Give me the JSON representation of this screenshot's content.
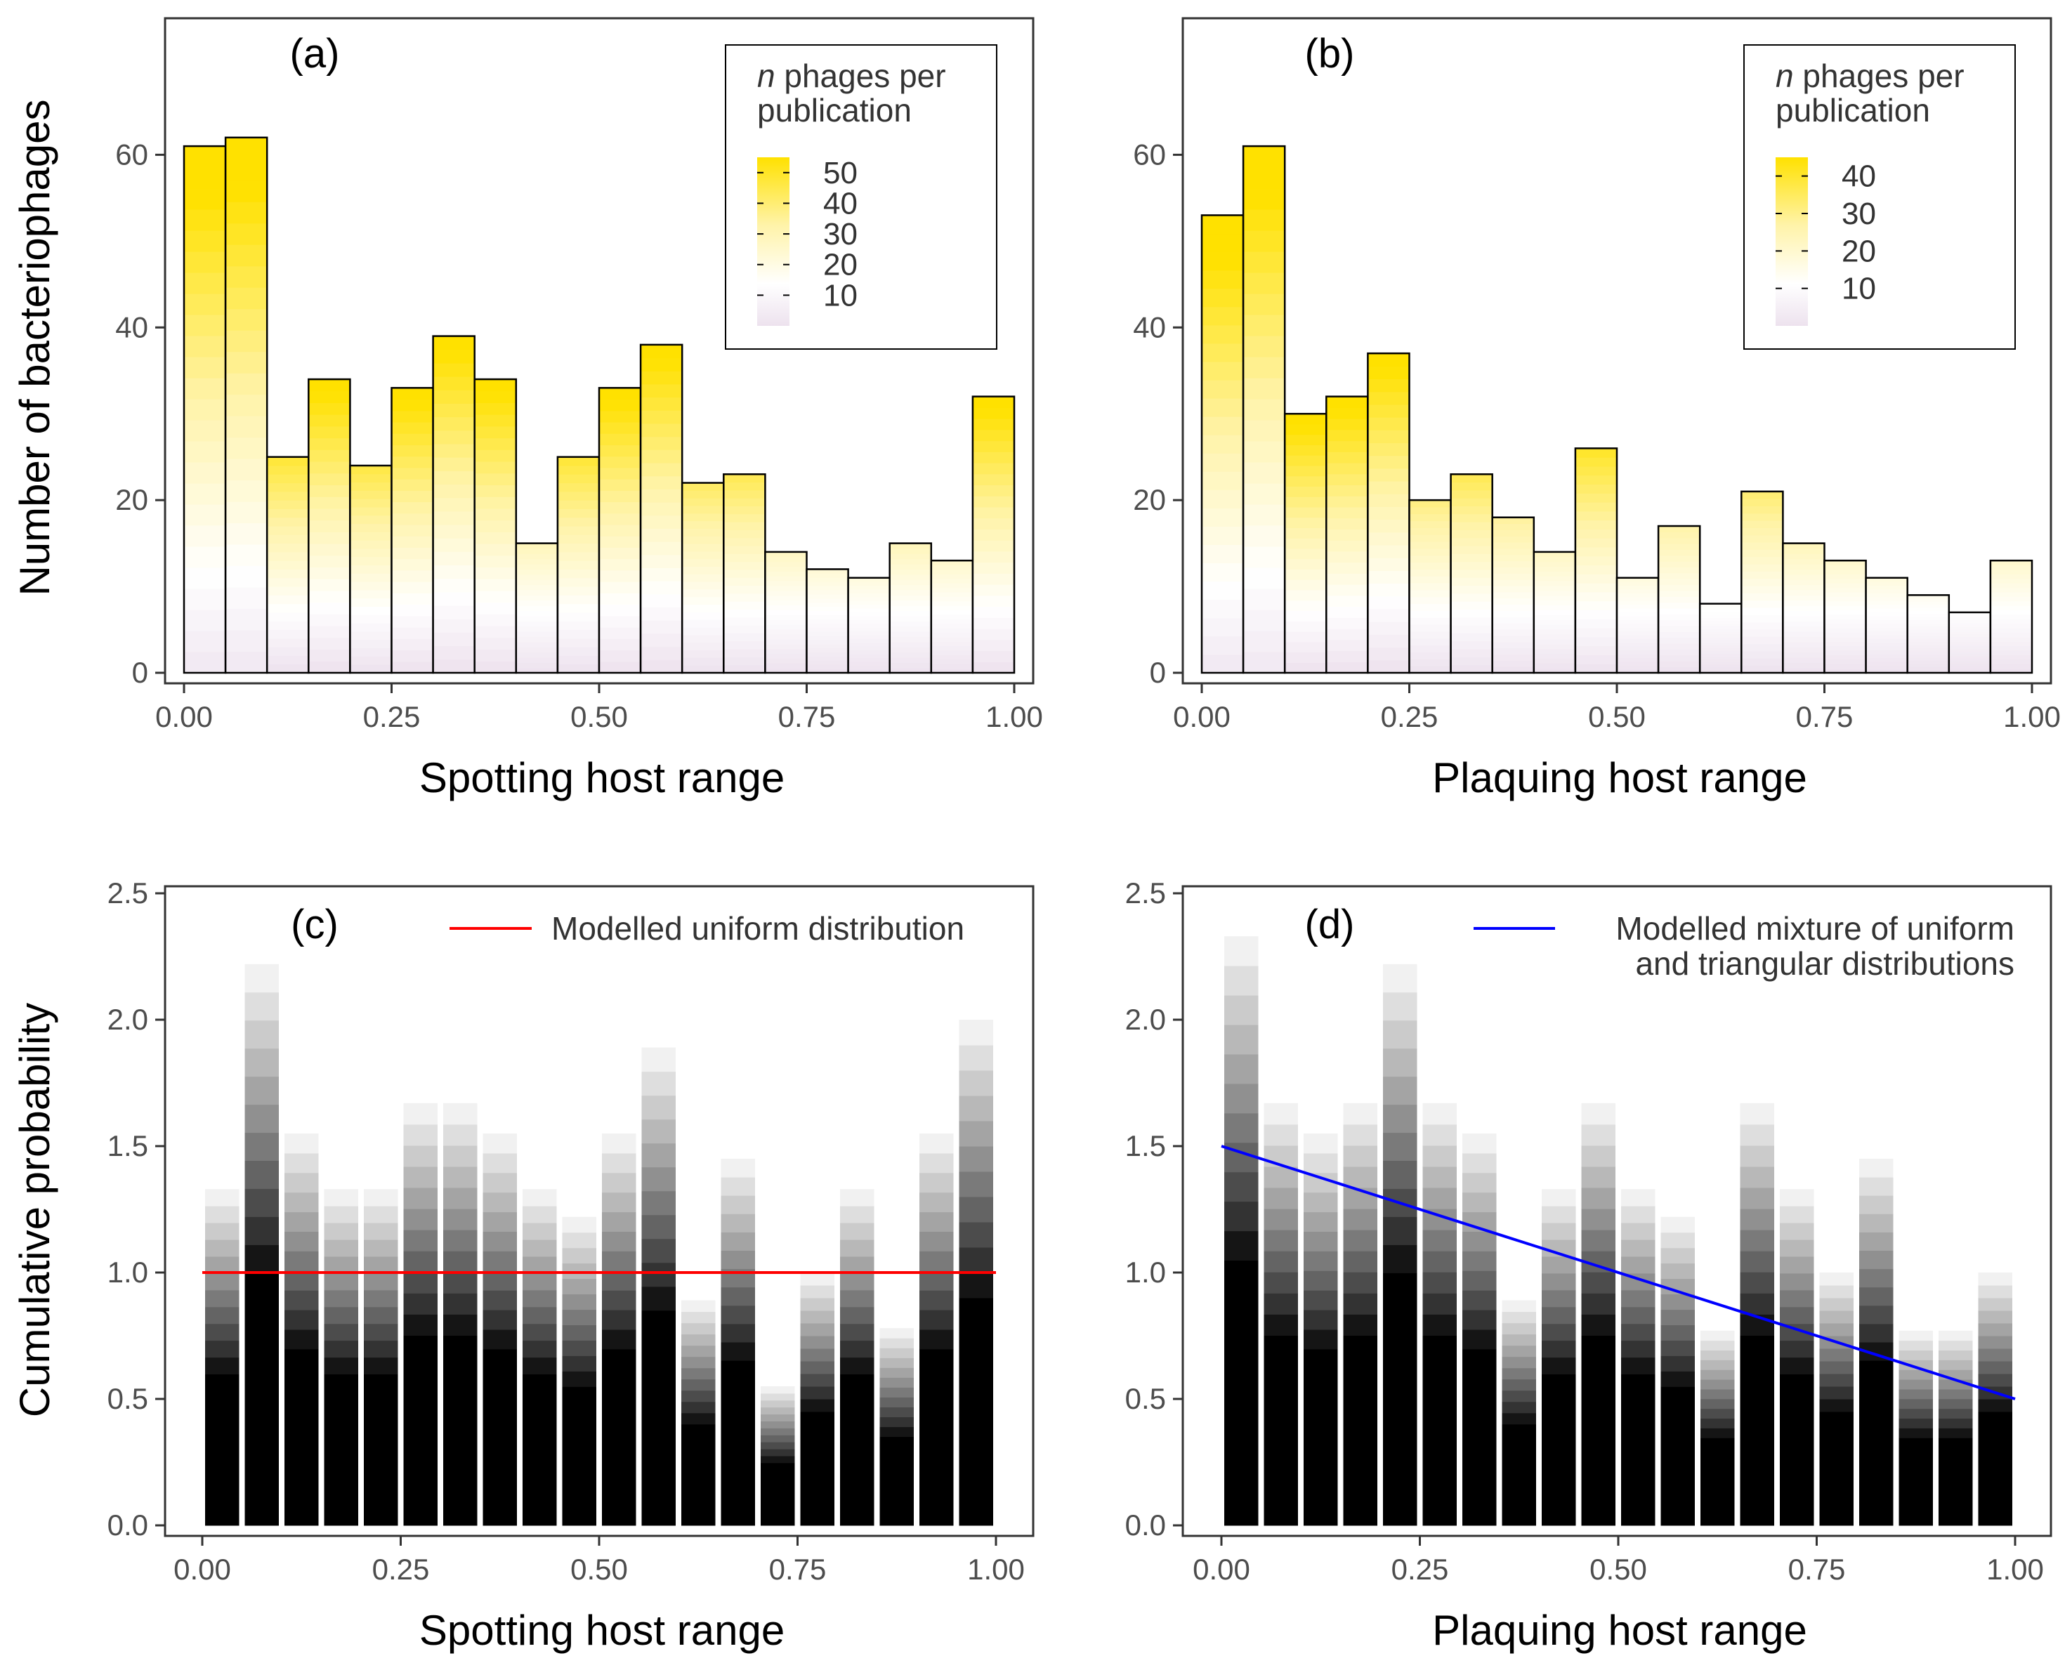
{
  "chart_data": [
    {
      "id": "a",
      "type": "bar",
      "panel_label": "(a)",
      "xlabel": "Spotting host range",
      "ylabel": "Number of bacteriophages",
      "xlim": [
        0,
        1
      ],
      "ylim": [
        0,
        75
      ],
      "x_ticks": [
        "0.00",
        "0.25",
        "0.50",
        "0.75",
        "1.00"
      ],
      "y_ticks": [
        "0",
        "20",
        "40",
        "60"
      ],
      "bin_centers": [
        0,
        0.05,
        0.1,
        0.15,
        0.2,
        0.25,
        0.3,
        0.35,
        0.4,
        0.45,
        0.5,
        0.55,
        0.6,
        0.65,
        0.7,
        0.75,
        0.8,
        0.85,
        0.9,
        0.95,
        1.0
      ],
      "values": [
        61,
        62,
        25,
        34,
        24,
        33,
        39,
        34,
        15,
        25,
        33,
        38,
        22,
        23,
        14,
        12,
        11,
        15,
        13,
        32
      ],
      "legend": {
        "title_italic": "n",
        "title_rest": " phages per",
        "title_line2": "publication",
        "labels": [
          "50",
          "40",
          "30",
          "20",
          "10"
        ],
        "max": 55
      }
    },
    {
      "id": "b",
      "type": "bar",
      "panel_label": "(b)",
      "xlabel": "Plaquing host range",
      "ylabel": "",
      "xlim": [
        0,
        1
      ],
      "ylim": [
        0,
        75
      ],
      "x_ticks": [
        "0.00",
        "0.25",
        "0.50",
        "0.75",
        "1.00"
      ],
      "y_ticks": [
        "0",
        "20",
        "40",
        "60"
      ],
      "values": [
        53,
        61,
        30,
        32,
        37,
        20,
        23,
        18,
        14,
        26,
        11,
        17,
        8,
        21,
        15,
        13,
        11,
        9,
        7,
        13
      ],
      "legend": {
        "title_italic": "n",
        "title_rest": " phages per",
        "title_line2": "publication",
        "labels": [
          "40",
          "30",
          "20",
          "10"
        ],
        "max": 45
      }
    },
    {
      "id": "c",
      "type": "bar",
      "panel_label": "(c)",
      "xlabel": "Spotting host range",
      "ylabel": "Cumulative probability",
      "xlim": [
        0,
        1
      ],
      "ylim": [
        0,
        2.5
      ],
      "x_ticks": [
        "0.00",
        "0.25",
        "0.50",
        "0.75",
        "1.00"
      ],
      "y_ticks": [
        "0.0",
        "0.5",
        "1.0",
        "1.5",
        "2.0",
        "2.5"
      ],
      "values": [
        1.33,
        2.22,
        1.55,
        1.33,
        1.33,
        1.67,
        1.67,
        1.55,
        1.33,
        1.22,
        1.55,
        1.89,
        0.89,
        1.45,
        0.55,
        1.0,
        1.33,
        0.78,
        1.55,
        2.0
      ],
      "model_line": {
        "label": "Modelled uniform distribution",
        "color": "#ff0000",
        "x": [
          0,
          1
        ],
        "y": [
          1.0,
          1.0
        ]
      }
    },
    {
      "id": "d",
      "type": "bar",
      "panel_label": "(d)",
      "xlabel": "Plaquing host range",
      "ylabel": "",
      "xlim": [
        0,
        1
      ],
      "ylim": [
        0,
        2.5
      ],
      "x_ticks": [
        "0.00",
        "0.25",
        "0.50",
        "0.75",
        "1.00"
      ],
      "y_ticks": [
        "0.0",
        "0.5",
        "1.0",
        "1.5",
        "2.0",
        "2.5"
      ],
      "values": [
        2.33,
        1.67,
        1.55,
        1.67,
        2.22,
        1.67,
        1.55,
        0.89,
        1.33,
        1.67,
        1.33,
        1.22,
        0.77,
        1.67,
        1.33,
        1.0,
        1.45,
        0.77,
        0.77,
        1.0
      ],
      "model_line": {
        "label": "Modelled mixture of uniform",
        "label_line2": "and triangular distributions",
        "color": "#0000ff",
        "x": [
          0,
          1
        ],
        "y": [
          1.5,
          0.5
        ]
      }
    }
  ]
}
